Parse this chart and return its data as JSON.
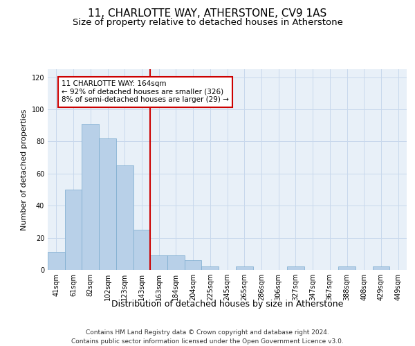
{
  "title": "11, CHARLOTTE WAY, ATHERSTONE, CV9 1AS",
  "subtitle": "Size of property relative to detached houses in Atherstone",
  "xlabel": "Distribution of detached houses by size in Atherstone",
  "ylabel": "Number of detached properties",
  "categories": [
    "41sqm",
    "61sqm",
    "82sqm",
    "102sqm",
    "123sqm",
    "143sqm",
    "163sqm",
    "184sqm",
    "204sqm",
    "225sqm",
    "245sqm",
    "265sqm",
    "286sqm",
    "306sqm",
    "327sqm",
    "347sqm",
    "367sqm",
    "388sqm",
    "408sqm",
    "429sqm",
    "449sqm"
  ],
  "values": [
    11,
    50,
    91,
    82,
    65,
    25,
    9,
    9,
    6,
    2,
    0,
    2,
    0,
    0,
    2,
    0,
    0,
    2,
    0,
    2,
    0
  ],
  "bar_color": "#b8d0e8",
  "bar_edge_color": "#7aaace",
  "grid_color": "#c8d8ec",
  "background_color": "#e8f0f8",
  "vline_x": 5.5,
  "vline_color": "#cc0000",
  "annotation_text": "11 CHARLOTTE WAY: 164sqm\n← 92% of detached houses are smaller (326)\n8% of semi-detached houses are larger (29) →",
  "annotation_box_color": "#ffffff",
  "annotation_box_edge": "#cc0000",
  "ylim": [
    0,
    125
  ],
  "yticks": [
    0,
    20,
    40,
    60,
    80,
    100,
    120
  ],
  "footer_line1": "Contains HM Land Registry data © Crown copyright and database right 2024.",
  "footer_line2": "Contains public sector information licensed under the Open Government Licence v3.0.",
  "title_fontsize": 11,
  "subtitle_fontsize": 9.5,
  "xlabel_fontsize": 9,
  "ylabel_fontsize": 8,
  "tick_fontsize": 7,
  "annotation_fontsize": 7.5,
  "footer_fontsize": 6.5
}
